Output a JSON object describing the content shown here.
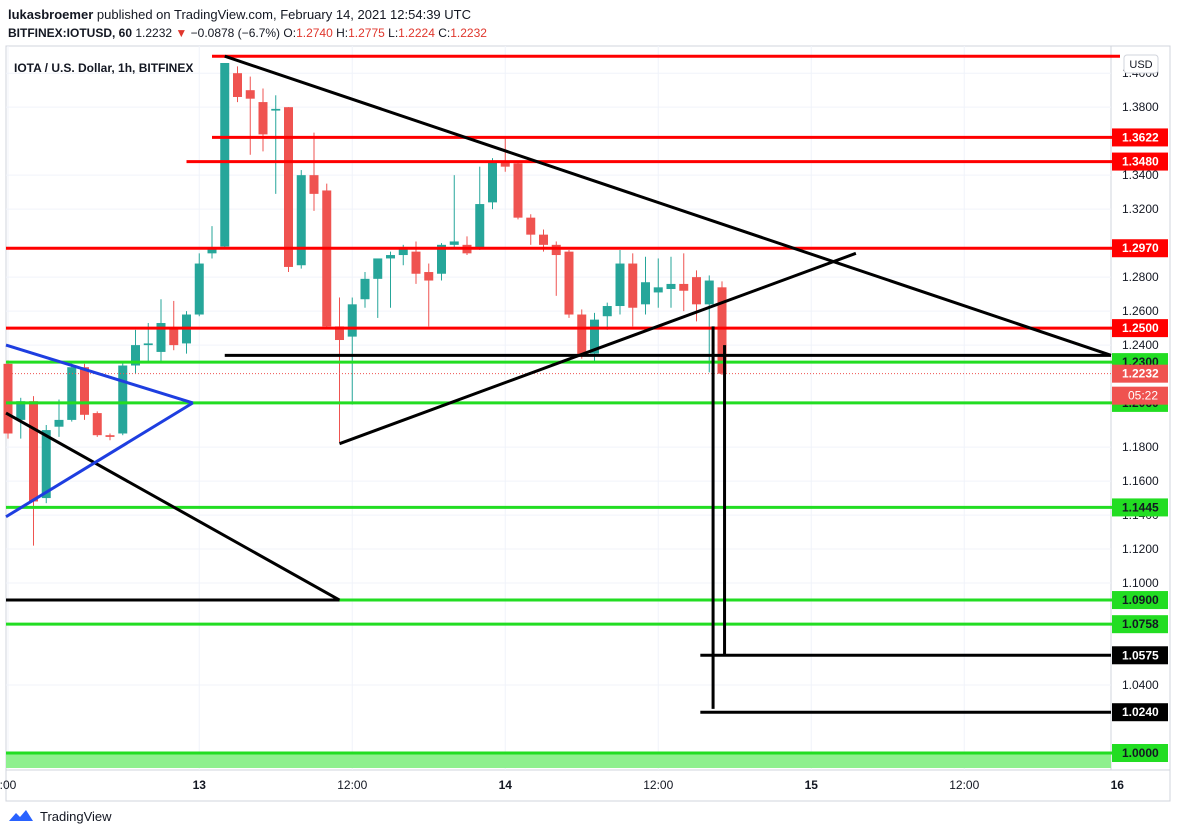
{
  "header": {
    "author": "lukasbroemer",
    "published_text": "published on TradingView.com, February 14, 2021 12:54:39 UTC",
    "symbol": "BITFINEX:IOTUSD, 60",
    "last": "1.2232",
    "change": "−0.0878 (−6.7%)",
    "open_label": "O:",
    "open": "1.2740",
    "high_label": "H:",
    "high": "1.2775",
    "low_label": "L:",
    "low": "1.2224",
    "close_label": "C:",
    "close": "1.2232"
  },
  "chart_title": "IOTA / U.S. Dollar, 1h, BITFINEX",
  "currency_button": "USD",
  "footer": {
    "brand": "TradingView"
  },
  "colors": {
    "up": "#26a69a",
    "down": "#ef5350",
    "red_level": "#ff0000",
    "green_level": "#22dd22",
    "trend": "#000000",
    "blue": "#1e3ee0",
    "grid": "#f0f3fa"
  },
  "chart_data": {
    "type": "candlestick",
    "title": "IOTA / U.S. Dollar, 1h, BITFINEX",
    "ylim": [
      0.99,
      1.416
    ],
    "y_ticks": [
      "1.4000",
      "1.3800",
      "1.3400",
      "1.3200",
      "1.2800",
      "1.2600",
      "1.2400",
      "1.1800",
      "1.1600",
      "1.1400",
      "1.1200",
      "1.1000",
      "1.0400"
    ],
    "x_ticks": [
      {
        "label": ":00",
        "t": 0
      },
      {
        "label": "13",
        "t": 15
      },
      {
        "label": "12:00",
        "t": 27
      },
      {
        "label": "14",
        "t": 39
      },
      {
        "label": "12:00",
        "t": 51
      },
      {
        "label": "15",
        "t": 63
      },
      {
        "label": "12:00",
        "t": 75
      },
      {
        "label": "16",
        "t": 87
      }
    ],
    "candles": [
      {
        "t": 0,
        "o": 1.229,
        "h": 1.231,
        "l": 1.185,
        "c": 1.188
      },
      {
        "t": 1,
        "o": 1.196,
        "h": 1.209,
        "l": 1.185,
        "c": 1.207
      },
      {
        "t": 2,
        "o": 1.207,
        "h": 1.21,
        "l": 1.122,
        "c": 1.148
      },
      {
        "t": 3,
        "o": 1.15,
        "h": 1.193,
        "l": 1.147,
        "c": 1.19
      },
      {
        "t": 4,
        "o": 1.192,
        "h": 1.208,
        "l": 1.186,
        "c": 1.196
      },
      {
        "t": 5,
        "o": 1.196,
        "h": 1.23,
        "l": 1.195,
        "c": 1.227
      },
      {
        "t": 6,
        "o": 1.227,
        "h": 1.229,
        "l": 1.196,
        "c": 1.199
      },
      {
        "t": 7,
        "o": 1.2,
        "h": 1.201,
        "l": 1.186,
        "c": 1.187
      },
      {
        "t": 8,
        "o": 1.187,
        "h": 1.188,
        "l": 1.184,
        "c": 1.186
      },
      {
        "t": 9,
        "o": 1.188,
        "h": 1.23,
        "l": 1.187,
        "c": 1.228
      },
      {
        "t": 10,
        "o": 1.228,
        "h": 1.249,
        "l": 1.223,
        "c": 1.24
      },
      {
        "t": 11,
        "o": 1.24,
        "h": 1.253,
        "l": 1.23,
        "c": 1.241
      },
      {
        "t": 12,
        "o": 1.236,
        "h": 1.267,
        "l": 1.23,
        "c": 1.253
      },
      {
        "t": 13,
        "o": 1.25,
        "h": 1.266,
        "l": 1.237,
        "c": 1.24
      },
      {
        "t": 14,
        "o": 1.241,
        "h": 1.26,
        "l": 1.235,
        "c": 1.258
      },
      {
        "t": 15,
        "o": 1.258,
        "h": 1.294,
        "l": 1.257,
        "c": 1.288
      },
      {
        "t": 16,
        "o": 1.294,
        "h": 1.31,
        "l": 1.291,
        "c": 1.297
      },
      {
        "t": 17,
        "o": 1.298,
        "h": 1.406,
        "l": 1.297,
        "c": 1.406
      },
      {
        "t": 18,
        "o": 1.4,
        "h": 1.404,
        "l": 1.383,
        "c": 1.386
      },
      {
        "t": 19,
        "o": 1.39,
        "h": 1.398,
        "l": 1.352,
        "c": 1.385
      },
      {
        "t": 20,
        "o": 1.383,
        "h": 1.391,
        "l": 1.354,
        "c": 1.364
      },
      {
        "t": 21,
        "o": 1.378,
        "h": 1.387,
        "l": 1.329,
        "c": 1.379
      },
      {
        "t": 22,
        "o": 1.38,
        "h": 1.38,
        "l": 1.283,
        "c": 1.286
      },
      {
        "t": 23,
        "o": 1.287,
        "h": 1.343,
        "l": 1.285,
        "c": 1.34
      },
      {
        "t": 24,
        "o": 1.34,
        "h": 1.365,
        "l": 1.319,
        "c": 1.329
      },
      {
        "t": 25,
        "o": 1.331,
        "h": 1.335,
        "l": 1.25,
        "c": 1.251
      },
      {
        "t": 26,
        "o": 1.251,
        "h": 1.268,
        "l": 1.183,
        "c": 1.243
      },
      {
        "t": 27,
        "o": 1.245,
        "h": 1.268,
        "l": 1.205,
        "c": 1.264
      },
      {
        "t": 28,
        "o": 1.267,
        "h": 1.283,
        "l": 1.262,
        "c": 1.279
      },
      {
        "t": 29,
        "o": 1.279,
        "h": 1.288,
        "l": 1.256,
        "c": 1.291
      },
      {
        "t": 30,
        "o": 1.291,
        "h": 1.295,
        "l": 1.262,
        "c": 1.293
      },
      {
        "t": 31,
        "o": 1.293,
        "h": 1.299,
        "l": 1.287,
        "c": 1.297
      },
      {
        "t": 32,
        "o": 1.295,
        "h": 1.301,
        "l": 1.276,
        "c": 1.282
      },
      {
        "t": 33,
        "o": 1.283,
        "h": 1.288,
        "l": 1.251,
        "c": 1.278
      },
      {
        "t": 34,
        "o": 1.282,
        "h": 1.3,
        "l": 1.278,
        "c": 1.299
      },
      {
        "t": 35,
        "o": 1.299,
        "h": 1.34,
        "l": 1.297,
        "c": 1.301
      },
      {
        "t": 36,
        "o": 1.299,
        "h": 1.304,
        "l": 1.293,
        "c": 1.294
      },
      {
        "t": 37,
        "o": 1.297,
        "h": 1.345,
        "l": 1.296,
        "c": 1.323
      },
      {
        "t": 38,
        "o": 1.324,
        "h": 1.35,
        "l": 1.32,
        "c": 1.348
      },
      {
        "t": 39,
        "o": 1.348,
        "h": 1.362,
        "l": 1.342,
        "c": 1.345
      },
      {
        "t": 40,
        "o": 1.347,
        "h": 1.348,
        "l": 1.314,
        "c": 1.315
      },
      {
        "t": 41,
        "o": 1.315,
        "h": 1.317,
        "l": 1.299,
        "c": 1.305
      },
      {
        "t": 42,
        "o": 1.305,
        "h": 1.308,
        "l": 1.295,
        "c": 1.299
      },
      {
        "t": 43,
        "o": 1.299,
        "h": 1.301,
        "l": 1.269,
        "c": 1.293
      },
      {
        "t": 44,
        "o": 1.295,
        "h": 1.296,
        "l": 1.256,
        "c": 1.258
      },
      {
        "t": 45,
        "o": 1.258,
        "h": 1.261,
        "l": 1.232,
        "c": 1.234
      },
      {
        "t": 46,
        "o": 1.235,
        "h": 1.259,
        "l": 1.23,
        "c": 1.255
      },
      {
        "t": 47,
        "o": 1.257,
        "h": 1.265,
        "l": 1.249,
        "c": 1.263
      },
      {
        "t": 48,
        "o": 1.263,
        "h": 1.296,
        "l": 1.258,
        "c": 1.288
      },
      {
        "t": 49,
        "o": 1.288,
        "h": 1.294,
        "l": 1.251,
        "c": 1.262
      },
      {
        "t": 50,
        "o": 1.264,
        "h": 1.292,
        "l": 1.258,
        "c": 1.277
      },
      {
        "t": 51,
        "o": 1.271,
        "h": 1.291,
        "l": 1.262,
        "c": 1.274
      },
      {
        "t": 52,
        "o": 1.273,
        "h": 1.292,
        "l": 1.262,
        "c": 1.276
      },
      {
        "t": 53,
        "o": 1.276,
        "h": 1.294,
        "l": 1.26,
        "c": 1.272
      },
      {
        "t": 54,
        "o": 1.28,
        "h": 1.284,
        "l": 1.254,
        "c": 1.264
      },
      {
        "t": 55,
        "o": 1.264,
        "h": 1.281,
        "l": 1.224,
        "c": 1.278
      },
      {
        "t": 56,
        "o": 1.274,
        "h": 1.2775,
        "l": 1.2224,
        "c": 1.2232
      }
    ],
    "red_levels": [
      {
        "value": 1.41,
        "label": "",
        "t0": 16
      },
      {
        "value": 1.3622,
        "label": "1.3622",
        "t0": 16
      },
      {
        "value": 1.348,
        "label": "1.3480",
        "t0": 14
      },
      {
        "value": 1.297,
        "label": "1.2970",
        "t0": -1
      },
      {
        "value": 1.25,
        "label": "1.2500",
        "t0": -1
      }
    ],
    "green_levels": [
      {
        "value": 1.23,
        "label": "1.2300"
      },
      {
        "value": 1.206,
        "label": "1.2060"
      },
      {
        "value": 1.1445,
        "label": "1.1445"
      },
      {
        "value": 1.09,
        "label": "1.0900"
      },
      {
        "value": 1.0758,
        "label": "1.0758"
      },
      {
        "value": 1.0,
        "label": "1.0000"
      }
    ],
    "black_levels": [
      {
        "value": 1.0575,
        "label": "1.0575"
      },
      {
        "value": 1.024,
        "label": "1.0240"
      }
    ],
    "last_price": {
      "value": 1.2232,
      "label": "1.2232",
      "countdown": "05:22"
    },
    "trendlines": [
      {
        "t1": 17,
        "v1": 1.41,
        "t2": 87.5,
        "v2": 1.234
      },
      {
        "t1": 26,
        "v1": 1.182,
        "t2": 66.5,
        "v2": 1.294
      },
      {
        "t1": 17,
        "v1": 1.234,
        "t2": 87.5,
        "v2": 1.234
      },
      {
        "t1": -1,
        "v1": 1.2,
        "t2": 26,
        "v2": 1.09
      },
      {
        "t1": -1,
        "v1": 1.09,
        "t2": 26,
        "v2": 1.09
      },
      {
        "t1": 54.3,
        "v1": 1.0575,
        "t2": 87.5,
        "v2": 1.0575
      },
      {
        "t1": 54.3,
        "v1": 1.024,
        "t2": 87.5,
        "v2": 1.024
      }
    ],
    "vertical_lines": [
      {
        "t": 55.3,
        "v1": 1.251,
        "v2": 1.026
      },
      {
        "t": 56.2,
        "v1": 1.24,
        "v2": 1.0575
      }
    ],
    "blue_lines": [
      {
        "t1": -1,
        "v1": 1.24,
        "t2": 14.5,
        "v2": 1.206
      },
      {
        "t1": -1,
        "v1": 1.139,
        "t2": 14.5,
        "v2": 1.206
      }
    ]
  }
}
